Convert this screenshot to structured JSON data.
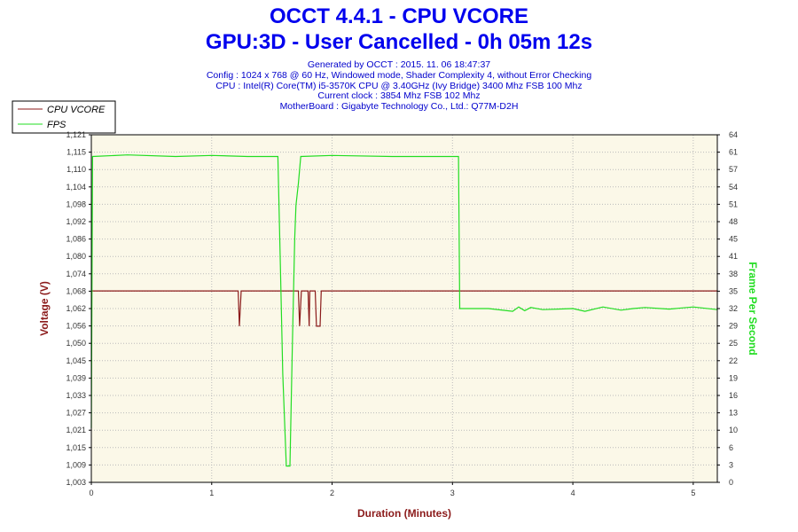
{
  "header": {
    "title": "OCCT 4.4.1 - CPU VCORE",
    "subtitle": "GPU:3D - User Cancelled - 0h 05m 12s",
    "info_lines": [
      "Generated by OCCT : 2015. 11. 06 18:47:37",
      "Config : 1024 x 768 @ 60 Hz, Windowed mode, Shader Complexity 4, without Error Checking",
      "CPU : Intel(R) Core(TM) i5-3570K CPU @ 3.40GHz (Ivy Bridge) 3400 Mhz FSB 100 Mhz",
      "Current clock : 3854 Mhz FSB 102 Mhz",
      "MotherBoard : Gigabyte Technology Co., Ltd.: Q77M-D2H"
    ]
  },
  "chart_data": {
    "type": "line",
    "xlabel": "Duration (Minutes)",
    "ylabel_left": "Voltage (V)",
    "ylabel_right": "Frame Per Second",
    "xlim": [
      0,
      5.2
    ],
    "ylim_left": [
      1.003,
      1.121
    ],
    "ylim_right": [
      0,
      64
    ],
    "grid": true,
    "legend_position": "top-left",
    "x_ticks": [
      "0",
      "1",
      "2",
      "3",
      "4",
      "5"
    ],
    "y_left_ticks": [
      "1,003",
      "1,009",
      "1,015",
      "1,021",
      "1,027",
      "1,033",
      "1,039",
      "1,045",
      "1,050",
      "1,056",
      "1,062",
      "1,068",
      "1,074",
      "1,080",
      "1,086",
      "1,092",
      "1,098",
      "1,104",
      "1,110",
      "1,115",
      "1,121"
    ],
    "y_right_ticks": [
      "0",
      "3",
      "6",
      "10",
      "13",
      "16",
      "19",
      "22",
      "25",
      "29",
      "32",
      "35",
      "38",
      "41",
      "45",
      "48",
      "51",
      "54",
      "57",
      "61",
      "64"
    ],
    "colors": {
      "vcore": "#8b1a1a",
      "fps": "#22dd22",
      "plot_bg": "#fbf8e8",
      "frame": "#000000"
    },
    "series": [
      {
        "name": "CPU VCORE",
        "axis": "left",
        "points": [
          [
            0,
            1.068
          ],
          [
            1.22,
            1.068
          ],
          [
            1.23,
            1.056
          ],
          [
            1.245,
            1.068
          ],
          [
            1.72,
            1.068
          ],
          [
            1.73,
            1.056
          ],
          [
            1.745,
            1.068
          ],
          [
            1.8,
            1.068
          ],
          [
            1.81,
            1.056
          ],
          [
            1.815,
            1.068
          ],
          [
            1.86,
            1.068
          ],
          [
            1.87,
            1.056
          ],
          [
            1.9,
            1.056
          ],
          [
            1.91,
            1.068
          ],
          [
            5.2,
            1.068
          ]
        ]
      },
      {
        "name": "FPS",
        "axis": "right",
        "points": [
          [
            0,
            10
          ],
          [
            0.01,
            60
          ],
          [
            0.3,
            60.3
          ],
          [
            0.7,
            60
          ],
          [
            1.0,
            60.2
          ],
          [
            1.3,
            60
          ],
          [
            1.55,
            60
          ],
          [
            1.57,
            40
          ],
          [
            1.59,
            20
          ],
          [
            1.62,
            3
          ],
          [
            1.65,
            3
          ],
          [
            1.67,
            25
          ],
          [
            1.69,
            45
          ],
          [
            1.7,
            51
          ],
          [
            1.72,
            55
          ],
          [
            1.74,
            60
          ],
          [
            2.0,
            60.2
          ],
          [
            2.5,
            60
          ],
          [
            3.0,
            60
          ],
          [
            3.05,
            60
          ],
          [
            3.06,
            32
          ],
          [
            3.3,
            32
          ],
          [
            3.5,
            31.5
          ],
          [
            3.55,
            32.3
          ],
          [
            3.6,
            31.6
          ],
          [
            3.65,
            32.2
          ],
          [
            3.75,
            31.8
          ],
          [
            4.0,
            32
          ],
          [
            4.1,
            31.5
          ],
          [
            4.25,
            32.3
          ],
          [
            4.4,
            31.7
          ],
          [
            4.5,
            32
          ],
          [
            4.6,
            32.2
          ],
          [
            4.8,
            31.9
          ],
          [
            5.0,
            32.3
          ],
          [
            5.2,
            31.8
          ]
        ]
      }
    ]
  }
}
